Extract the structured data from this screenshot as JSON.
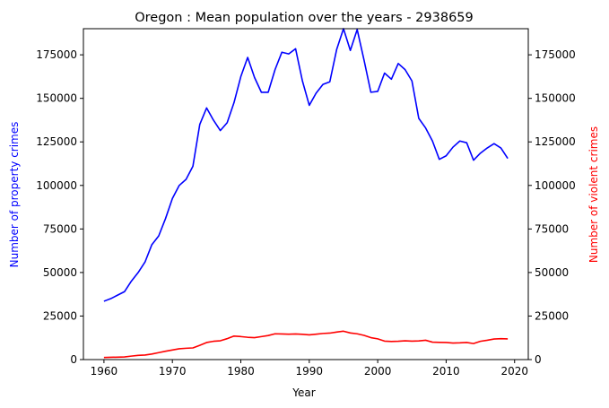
{
  "chart_data": {
    "type": "line",
    "title": "Oregon : Mean population over the years - 2938659",
    "xlabel": "Year",
    "ylabel_left": "Number of property crimes",
    "ylabel_right": "Number of violent crimes",
    "xlim": [
      1957,
      2022
    ],
    "ylim": [
      0,
      190000
    ],
    "x_ticks": [
      1960,
      1970,
      1980,
      1990,
      2000,
      2010,
      2020
    ],
    "y_ticks": [
      0,
      25000,
      50000,
      75000,
      100000,
      125000,
      150000,
      175000
    ],
    "colors": {
      "property": "#0000ff",
      "violent": "#ff0000"
    },
    "x": [
      1960,
      1961,
      1962,
      1963,
      1964,
      1965,
      1966,
      1967,
      1968,
      1969,
      1970,
      1971,
      1972,
      1973,
      1974,
      1975,
      1976,
      1977,
      1978,
      1979,
      1980,
      1981,
      1982,
      1983,
      1984,
      1985,
      1986,
      1987,
      1988,
      1989,
      1990,
      1991,
      1992,
      1993,
      1994,
      1995,
      1996,
      1997,
      1998,
      1999,
      2000,
      2001,
      2002,
      2003,
      2004,
      2005,
      2006,
      2007,
      2008,
      2009,
      2010,
      2011,
      2012,
      2013,
      2014,
      2015,
      2016,
      2017,
      2018,
      2019
    ],
    "series": [
      {
        "key": "property",
        "axis": "left",
        "values": [
          33500,
          35000,
          37000,
          39000,
          45000,
          50000,
          56000,
          66000,
          71000,
          81000,
          92500,
          100000,
          103500,
          111000,
          135000,
          144500,
          137500,
          131500,
          136000,
          147500,
          162500,
          173500,
          162000,
          153500,
          153500,
          166500,
          176500,
          175500,
          178500,
          160000,
          146000,
          153000,
          158000,
          159500,
          178000,
          190000,
          177500,
          189500,
          172000,
          153500,
          154000,
          164500,
          161000,
          170000,
          166500,
          160000,
          138500,
          133000,
          125500,
          115000,
          117000,
          122000,
          125500,
          124500,
          114500,
          118500,
          121500,
          124000,
          121500,
          115500
        ]
      },
      {
        "key": "violent",
        "axis": "right",
        "values": [
          1200,
          1300,
          1400,
          1500,
          2000,
          2400,
          2600,
          3200,
          4000,
          4800,
          5500,
          6200,
          6500,
          6700,
          8200,
          9800,
          10500,
          10800,
          12000,
          13500,
          13200,
          12800,
          12600,
          13200,
          13800,
          14800,
          14700,
          14600,
          14700,
          14500,
          14200,
          14600,
          15000,
          15200,
          15800,
          16300,
          15300,
          14800,
          13900,
          12600,
          11900,
          10600,
          10400,
          10500,
          10800,
          10600,
          10700,
          11100,
          10000,
          9900,
          9800,
          9500,
          9600,
          9800,
          9200,
          10500,
          11100,
          11800,
          12000,
          11900
        ]
      }
    ]
  }
}
